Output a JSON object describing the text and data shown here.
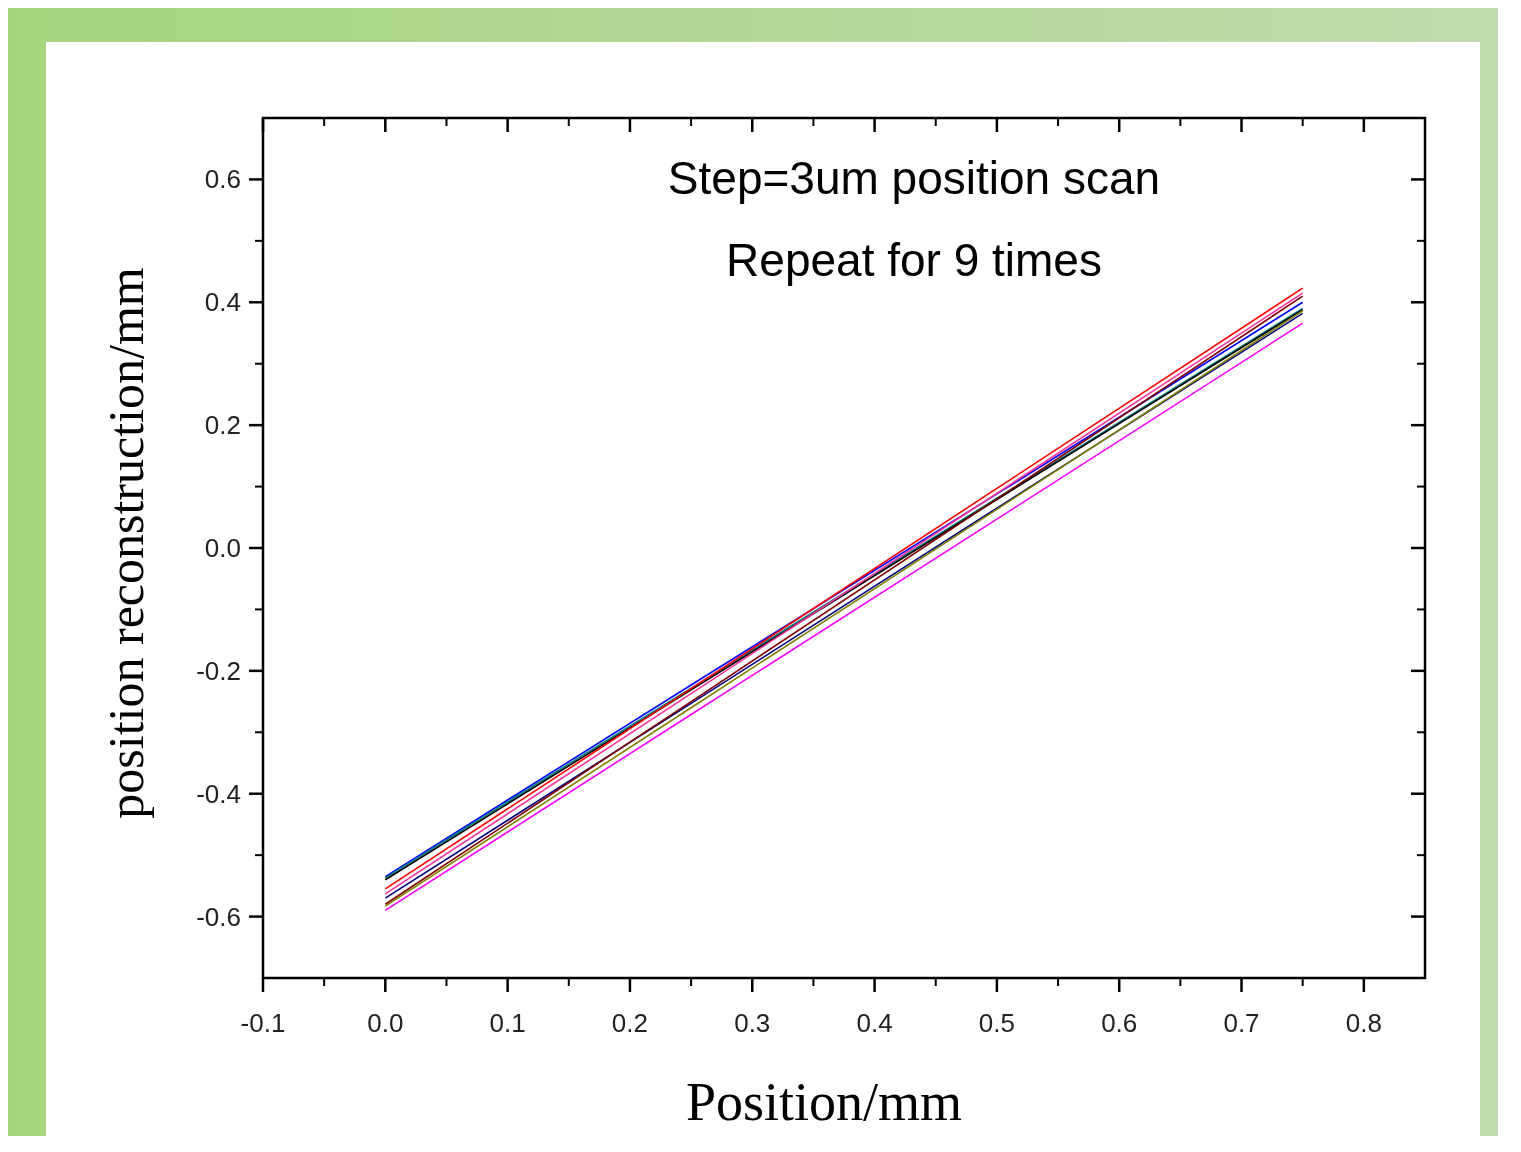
{
  "chart_data": {
    "type": "line",
    "xlabel": "Position/mm",
    "ylabel": "position reconstruction/mm",
    "annotations": [
      "Step=3um position scan",
      "Repeat for 9 times"
    ],
    "x": [
      0,
      0.25,
      0.5,
      0.75
    ],
    "series": [
      {
        "color": "#0000ff",
        "values": [
          -0.535,
          -0.223,
          0.088,
          0.4
        ]
      },
      {
        "color": "#008080",
        "values": [
          -0.537,
          -0.228,
          0.081,
          0.39
        ]
      },
      {
        "color": "#000000",
        "values": [
          -0.54,
          -0.231,
          0.079,
          0.388
        ]
      },
      {
        "color": "#ff0000",
        "values": [
          -0.555,
          -0.229,
          0.097,
          0.423
        ]
      },
      {
        "color": "#ff3399",
        "values": [
          -0.563,
          -0.237,
          0.089,
          0.415
        ]
      },
      {
        "color": "#000080",
        "values": [
          -0.57,
          -0.253,
          0.065,
          0.382
        ]
      },
      {
        "color": "#800000",
        "values": [
          -0.58,
          -0.25,
          0.08,
          0.41
        ]
      },
      {
        "color": "#808000",
        "values": [
          -0.583,
          -0.26,
          0.063,
          0.386
        ]
      },
      {
        "color": "#ff00ff",
        "values": [
          -0.59,
          -0.271,
          0.047,
          0.366
        ]
      }
    ],
    "xlim": [
      -0.1,
      0.85
    ],
    "ylim": [
      -0.7,
      0.7
    ],
    "xticks": [
      -0.1,
      {
        "value": 0,
        "label": "0.0"
      },
      0.1,
      0.2,
      0.3,
      0.4,
      0.5,
      0.6,
      0.7,
      0.8
    ],
    "yticks": [
      -0.6,
      -0.4,
      -0.2,
      {
        "value": 0,
        "label": "0.0"
      },
      0.2,
      0.4,
      0.6
    ],
    "marker": "none",
    "line_style": "solid"
  }
}
